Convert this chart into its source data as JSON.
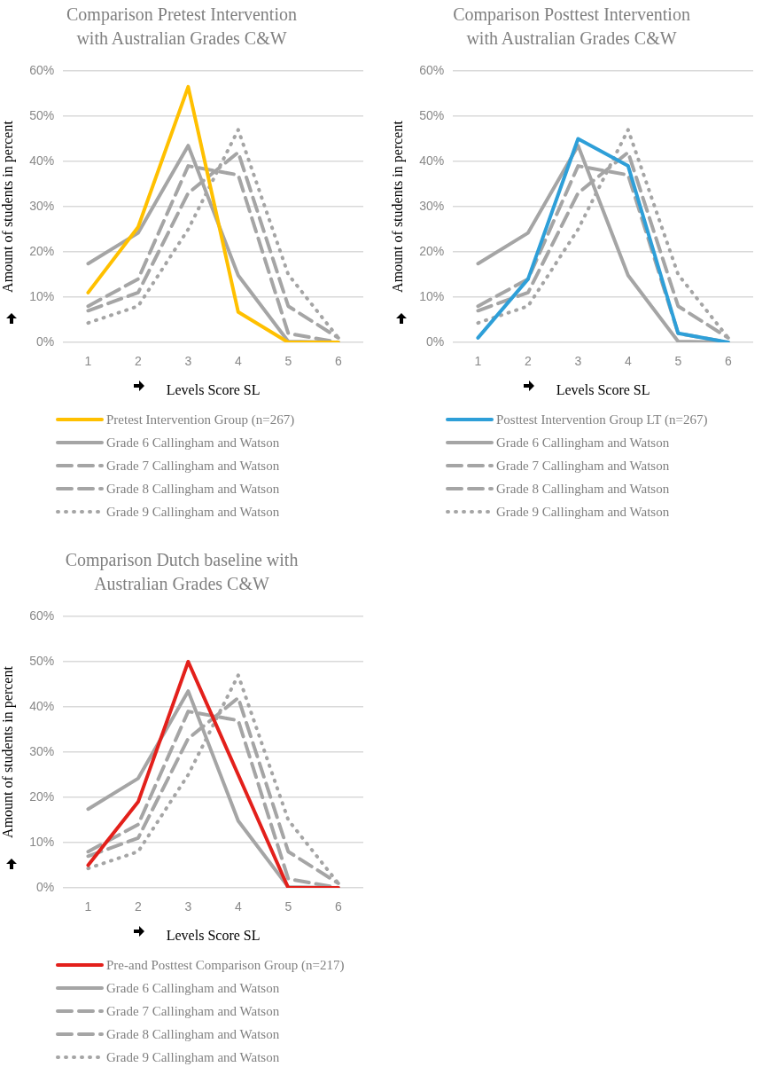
{
  "chart_data": [
    {
      "type": "line",
      "title": "Comparison Pretest Intervention with Australian Grades C&W",
      "xlabel": "Levels Score SL",
      "ylabel": "Amount of students in percent",
      "categories": [
        "1",
        "2",
        "3",
        "4",
        "5",
        "6"
      ],
      "ylim": [
        0,
        60
      ],
      "yticks": [
        {
          "value": 0,
          "label": "0%"
        },
        {
          "value": 10,
          "label": "10%"
        },
        {
          "value": 20,
          "label": "20%"
        },
        {
          "value": 30,
          "label": "30%"
        },
        {
          "value": 40,
          "label": "40%"
        },
        {
          "value": 50,
          "label": "50%"
        },
        {
          "value": 60,
          "label": "60%"
        }
      ],
      "grid": "y",
      "legend": "bottom",
      "series": [
        {
          "name": "Pretest Intervention Group (n=267)",
          "color": "#ffc000",
          "line_style": "solid",
          "values": [
            11,
            25.5,
            56.5,
            6.7,
            0,
            0
          ]
        },
        {
          "name": "Grade 6 Callingham and Watson",
          "color": "#a5a5a5",
          "line_style": "solid",
          "values": [
            17.4,
            24.2,
            43.5,
            14.8,
            0.2,
            0
          ]
        },
        {
          "name": "Grade 7 Callingham and Watson",
          "color": "#a5a5a5",
          "line_style": "dashed",
          "values": [
            8,
            14,
            39,
            37,
            2,
            0
          ]
        },
        {
          "name": "Grade 8 Callingham and Watson",
          "color": "#a5a5a5",
          "line_style": "dashed",
          "values": [
            7,
            11,
            33,
            42,
            8,
            1
          ]
        },
        {
          "name": "Grade 9 Callingham and Watson",
          "color": "#a5a5a5",
          "line_style": "dotted",
          "values": [
            4.3,
            8,
            25,
            47,
            15,
            1
          ]
        }
      ]
    },
    {
      "type": "line",
      "title": "Comparison Posttest Intervention with Australian Grades C&W",
      "xlabel": "Levels Score SL",
      "ylabel": "Amount of students in percent",
      "categories": [
        "1",
        "2",
        "3",
        "4",
        "5",
        "6"
      ],
      "ylim": [
        0,
        60
      ],
      "yticks": [
        {
          "value": 0,
          "label": "0%"
        },
        {
          "value": 10,
          "label": "10%"
        },
        {
          "value": 20,
          "label": "20%"
        },
        {
          "value": 30,
          "label": "30%"
        },
        {
          "value": 40,
          "label": "40%"
        },
        {
          "value": 50,
          "label": "50%"
        },
        {
          "value": 60,
          "label": "60%"
        }
      ],
      "grid": "y",
      "legend": "bottom",
      "series": [
        {
          "name": "Posttest Intervention Group LT (n=267)",
          "color": "#2e9fd8",
          "line_style": "solid",
          "values": [
            1,
            14,
            45,
            39,
            2,
            0
          ]
        },
        {
          "name": "Grade 6 Callingham and Watson",
          "color": "#a5a5a5",
          "line_style": "solid",
          "values": [
            17.4,
            24.2,
            43.5,
            14.8,
            0.2,
            0
          ]
        },
        {
          "name": "Grade 7 Callingham and Watson",
          "color": "#a5a5a5",
          "line_style": "dashed",
          "values": [
            8,
            14,
            39,
            37,
            2,
            0
          ]
        },
        {
          "name": "Grade 8 Callingham and Watson",
          "color": "#a5a5a5",
          "line_style": "dashed",
          "values": [
            7,
            11,
            33,
            42,
            8,
            1
          ]
        },
        {
          "name": "Grade 9 Callingham and Watson",
          "color": "#a5a5a5",
          "line_style": "dotted",
          "values": [
            4.3,
            8,
            25,
            47,
            15,
            1
          ]
        }
      ]
    },
    {
      "type": "line",
      "title": "Comparison Dutch baseline with Australian Grades C&W",
      "xlabel": "Levels Score SL",
      "ylabel": "Amount of students in percent",
      "categories": [
        "1",
        "2",
        "3",
        "4",
        "5",
        "6"
      ],
      "ylim": [
        0,
        60
      ],
      "yticks": [
        {
          "value": 0,
          "label": "0%"
        },
        {
          "value": 10,
          "label": "10%"
        },
        {
          "value": 20,
          "label": "20%"
        },
        {
          "value": 30,
          "label": "30%"
        },
        {
          "value": 40,
          "label": "40%"
        },
        {
          "value": 50,
          "label": "50%"
        },
        {
          "value": 60,
          "label": "60%"
        }
      ],
      "grid": "y",
      "legend": "bottom",
      "series": [
        {
          "name": "Pre-and Posttest Comparison Group (n=217)",
          "color": "#e3201b",
          "line_style": "solid",
          "values": [
            5,
            19,
            50,
            25,
            0,
            0
          ]
        },
        {
          "name": "Grade 6 Callingham and Watson",
          "color": "#a5a5a5",
          "line_style": "solid",
          "values": [
            17.4,
            24.2,
            43.5,
            14.8,
            0.2,
            0
          ]
        },
        {
          "name": "Grade 7 Callingham and Watson",
          "color": "#a5a5a5",
          "line_style": "dashed",
          "values": [
            8,
            14,
            39,
            37,
            2,
            0
          ]
        },
        {
          "name": "Grade 8 Callingham and Watson",
          "color": "#a5a5a5",
          "line_style": "dashed",
          "values": [
            7,
            11,
            33,
            42,
            8,
            1
          ]
        },
        {
          "name": "Grade 9 Callingham and Watson",
          "color": "#a5a5a5",
          "line_style": "dotted",
          "values": [
            4.3,
            8,
            25,
            47,
            15,
            1
          ]
        }
      ]
    }
  ]
}
